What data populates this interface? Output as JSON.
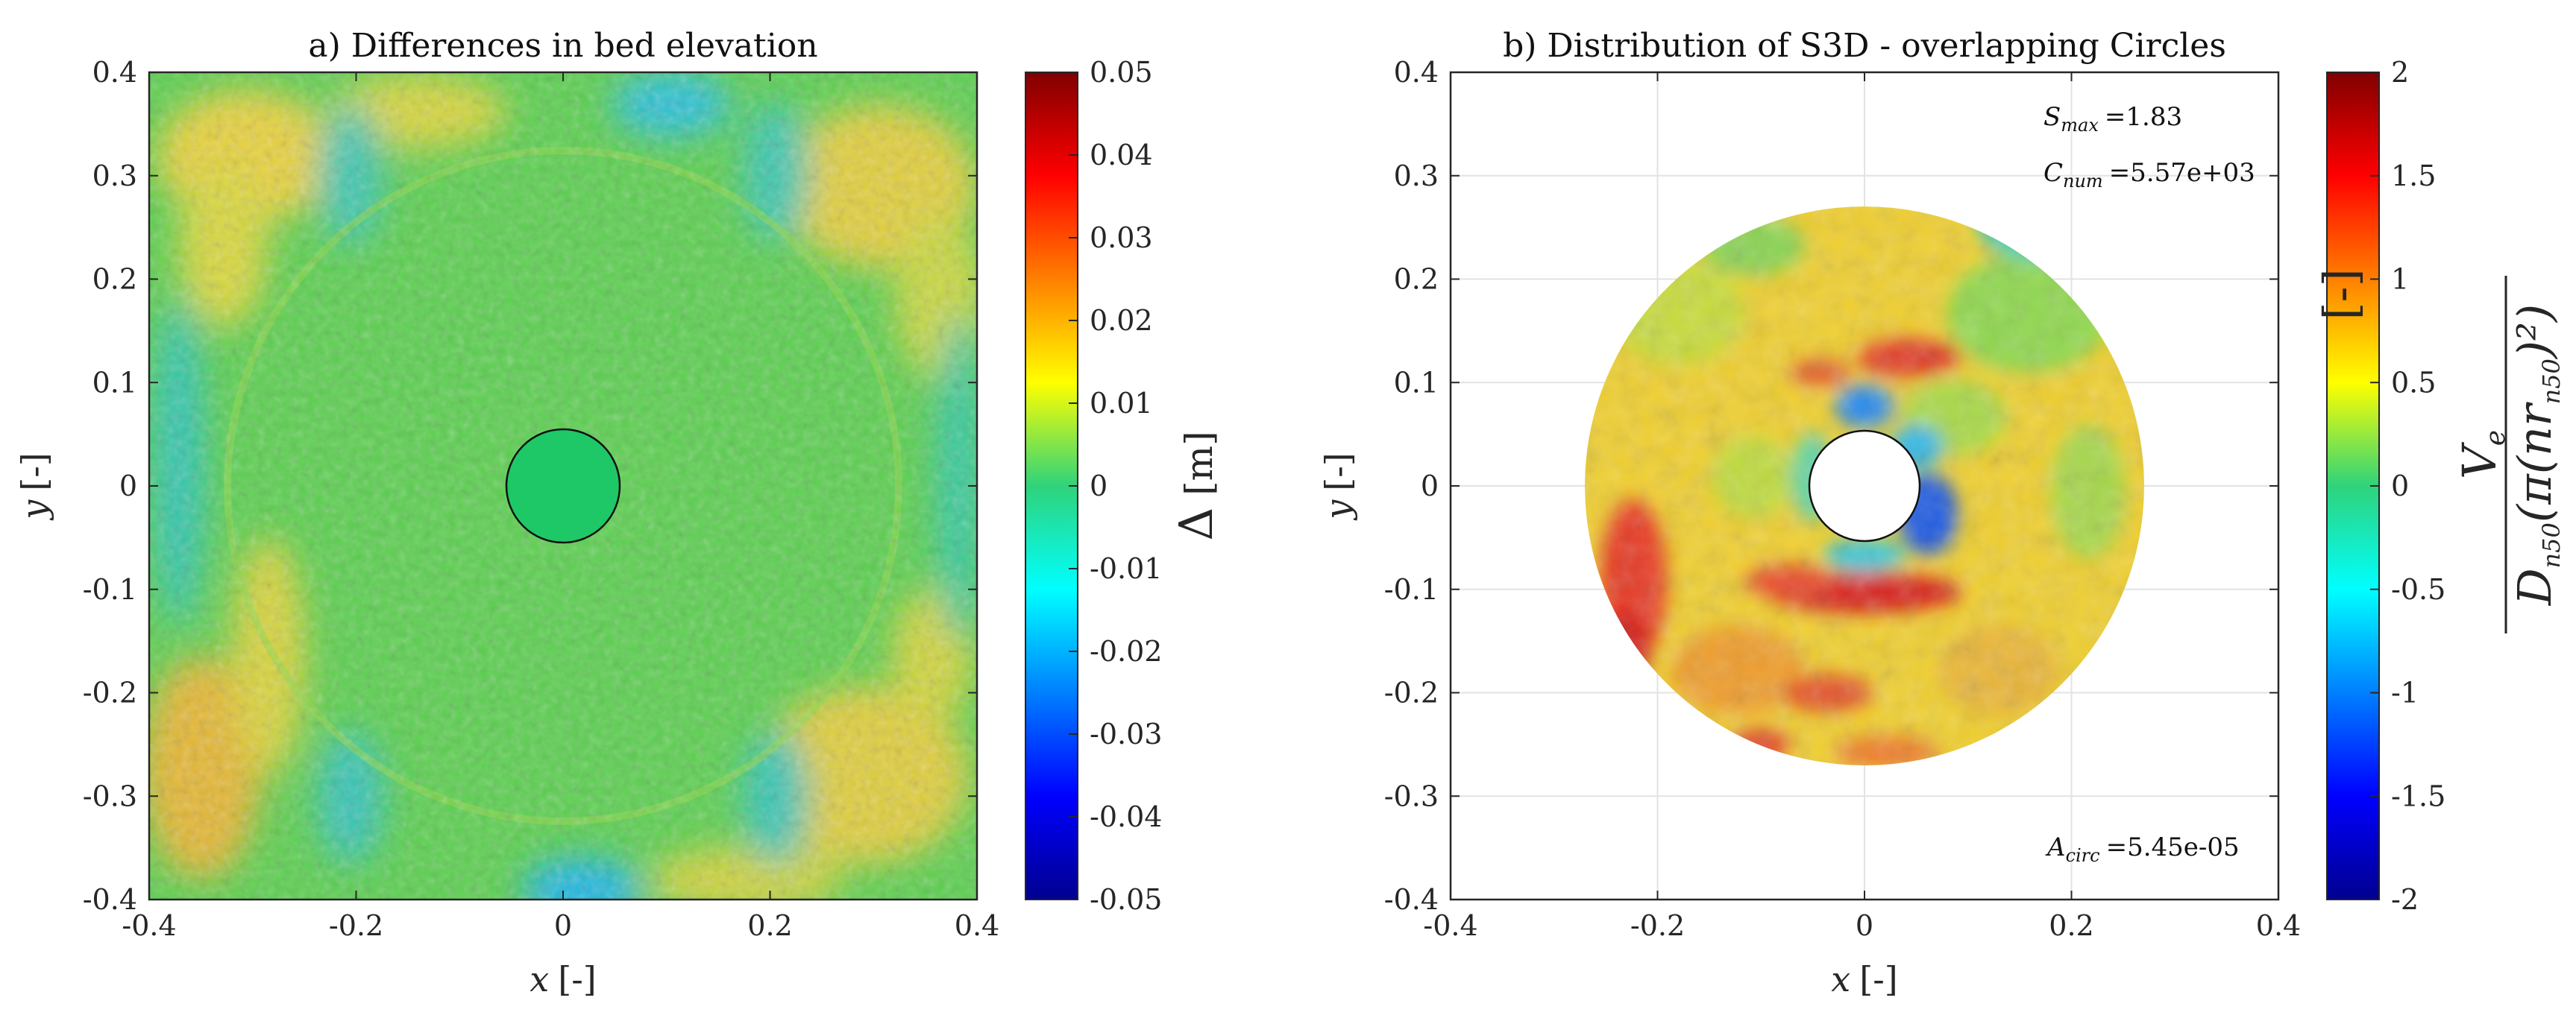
{
  "chart_data": [
    {
      "type": "heatmap",
      "title": "a) Differences in bed elevation",
      "xlabel_var": "x",
      "xlabel_unit": "[-]",
      "ylabel_var": "y",
      "ylabel_unit": "[-]",
      "xlim": [
        -0.4,
        0.4
      ],
      "ylim": [
        -0.4,
        0.4
      ],
      "xticks": [
        -0.4,
        -0.2,
        0,
        0.2,
        0.4
      ],
      "xtick_labels": [
        "-0.4",
        "-0.2",
        "0",
        "0.2",
        "0.4"
      ],
      "yticks": [
        0.4,
        0.3,
        0.2,
        0.1,
        0,
        -0.1,
        -0.2,
        -0.3,
        -0.4
      ],
      "ytick_labels": [
        "0.4",
        "0.3",
        "0.2",
        "0.1",
        "0",
        "-0.1",
        "-0.2",
        "-0.3",
        "-0.4"
      ],
      "pile_radius": 0.055,
      "colorbar": {
        "label_symbol": "Δ",
        "label_unit": "[m]",
        "range": [
          -0.05,
          0.05
        ],
        "ticks": [
          0.05,
          0.04,
          0.03,
          0.02,
          0.01,
          0,
          -0.01,
          -0.02,
          -0.03,
          -0.04,
          -0.05
        ],
        "tick_labels": [
          "0.05",
          "0.04",
          "0.03",
          "0.02",
          "0.01",
          "0",
          "-0.01",
          "-0.02",
          "-0.03",
          "-0.04",
          "-0.05"
        ]
      }
    },
    {
      "type": "heatmap",
      "title": "b) Distribution of S3D - overlapping Circles",
      "xlabel_var": "x",
      "xlabel_unit": "[-]",
      "ylabel_var": "y",
      "ylabel_unit": "[-]",
      "xlim": [
        -0.4,
        0.4
      ],
      "ylim": [
        -0.4,
        0.4
      ],
      "xticks": [
        -0.4,
        -0.2,
        0,
        0.2,
        0.4
      ],
      "xtick_labels": [
        "-0.4",
        "-0.2",
        "0",
        "0.2",
        "0.4"
      ],
      "yticks": [
        0.4,
        0.3,
        0.2,
        0.1,
        0,
        -0.1,
        -0.2,
        -0.3,
        -0.4
      ],
      "ytick_labels": [
        "0.4",
        "0.3",
        "0.2",
        "0.1",
        "0",
        "-0.1",
        "-0.2",
        "-0.3",
        "-0.4"
      ],
      "grid": true,
      "outer_radius": 0.27,
      "inner_radius": 0.053,
      "annotations": {
        "smax_var": "S",
        "smax_sub": "max",
        "smax_value": "=1.83",
        "cnum_var": "C",
        "cnum_sub": "num",
        "cnum_value": "=5.57e+03",
        "acirc_var": "A",
        "acirc_sub": "circ",
        "acirc_value": "=5.45e-05"
      },
      "colorbar": {
        "label_num": "V",
        "label_num_sub": "e",
        "label_den": "D",
        "label_den_sub": "n50",
        "label_den_rest": "(π(nr",
        "label_den_rest_sub": "n50",
        "label_den_rest_end": ")²)",
        "label_unit": "[-]",
        "range": [
          -2,
          2
        ],
        "ticks": [
          2,
          1.5,
          1,
          0.5,
          0,
          -0.5,
          -1,
          -1.5,
          -2
        ],
        "tick_labels": [
          "2",
          "1.5",
          "1",
          "0.5",
          "0",
          "-0.5",
          "-1",
          "-1.5",
          "-2"
        ]
      }
    }
  ]
}
